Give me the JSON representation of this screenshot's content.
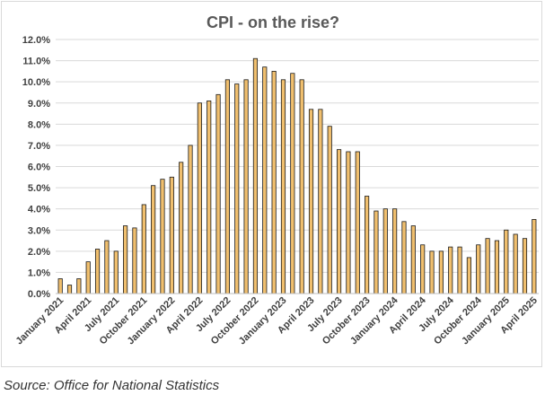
{
  "source": "Source: Office for National Statistics",
  "colors": {
    "bar_fill": "#f0bf6e",
    "bar_stroke": "#1a1a1a",
    "gridline": "#d9d9d9",
    "axis": "#bfbfbf"
  },
  "chart_data": {
    "type": "bar",
    "title": "CPI - on the rise?",
    "xlabel": "",
    "ylabel": "",
    "ylim": [
      0,
      12
    ],
    "y_ticks": [
      "0.0%",
      "1.0%",
      "2.0%",
      "3.0%",
      "4.0%",
      "5.0%",
      "6.0%",
      "7.0%",
      "8.0%",
      "9.0%",
      "10.0%",
      "11.0%",
      "12.0%"
    ],
    "grid": "horizontal",
    "legend": "none",
    "categories": [
      "January 2021",
      "February 2021",
      "March 2021",
      "April 2021",
      "May 2021",
      "June 2021",
      "July 2021",
      "August 2021",
      "September 2021",
      "October 2021",
      "November 2021",
      "December 2021",
      "January 2022",
      "February 2022",
      "March 2022",
      "April 2022",
      "May 2022",
      "June 2022",
      "July 2022",
      "August 2022",
      "September 2022",
      "October 2022",
      "November 2022",
      "December 2022",
      "January 2023",
      "February 2023",
      "March 2023",
      "April 2023",
      "May 2023",
      "June 2023",
      "July 2023",
      "August 2023",
      "September 2023",
      "October 2023",
      "November 2023",
      "December 2023",
      "January 2024",
      "February 2024",
      "March 2024",
      "April 2024",
      "May 2024",
      "June 2024",
      "July 2024",
      "August 2024",
      "September 2024",
      "October 2024",
      "November 2024",
      "December 2024",
      "January 2025",
      "February 2025",
      "March 2025",
      "April 2025"
    ],
    "x_tick_labels": [
      "January 2021",
      "",
      "",
      "April 2021",
      "",
      "",
      "July 2021",
      "",
      "",
      "October 2021",
      "",
      "",
      "January 2022",
      "",
      "",
      "April 2022",
      "",
      "",
      "July 2022",
      "",
      "",
      "October 2022",
      "",
      "",
      "January 2023",
      "",
      "",
      "April 2023",
      "",
      "",
      "July 2023",
      "",
      "",
      "October 2023",
      "",
      "",
      "January 2024",
      "",
      "",
      "April 2024",
      "",
      "",
      "July 2024",
      "",
      "",
      "October 2024",
      "",
      "",
      "January 2025",
      "",
      "",
      "April 2025"
    ],
    "values": [
      0.7,
      0.4,
      0.7,
      1.5,
      2.1,
      2.5,
      2.0,
      3.2,
      3.1,
      4.2,
      5.1,
      5.4,
      5.5,
      6.2,
      7.0,
      9.0,
      9.1,
      9.4,
      10.1,
      9.9,
      10.1,
      11.1,
      10.7,
      10.5,
      10.1,
      10.4,
      10.1,
      8.7,
      8.7,
      7.9,
      6.8,
      6.7,
      6.7,
      4.6,
      3.9,
      4.0,
      4.0,
      3.4,
      3.2,
      2.3,
      2.0,
      2.0,
      2.2,
      2.2,
      1.7,
      2.3,
      2.6,
      2.5,
      3.0,
      2.8,
      2.6,
      3.5
    ]
  }
}
